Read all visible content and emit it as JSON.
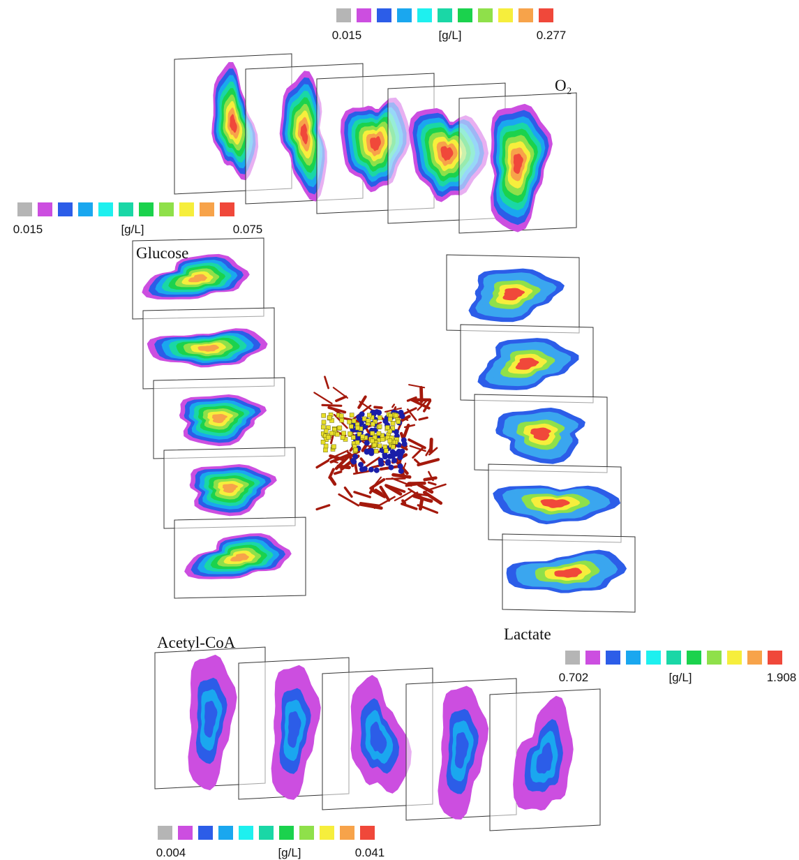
{
  "panels": [
    {
      "label": "O₂",
      "colorbar": {
        "min": "0.015",
        "unit": "[g/L]",
        "max": "0.277"
      }
    },
    {
      "label": "Glucose",
      "colorbar": {
        "min": "0.015",
        "unit": "[g/L]",
        "max": "0.075"
      }
    },
    {
      "label": "Lactate",
      "colorbar": {
        "min": "0.702",
        "unit": "[g/L]",
        "max": "1.908"
      }
    },
    {
      "label": "Acetyl-CoA",
      "colorbar": {
        "min": "0.004",
        "unit": "[g/L]",
        "max": "0.041"
      }
    }
  ]
}
